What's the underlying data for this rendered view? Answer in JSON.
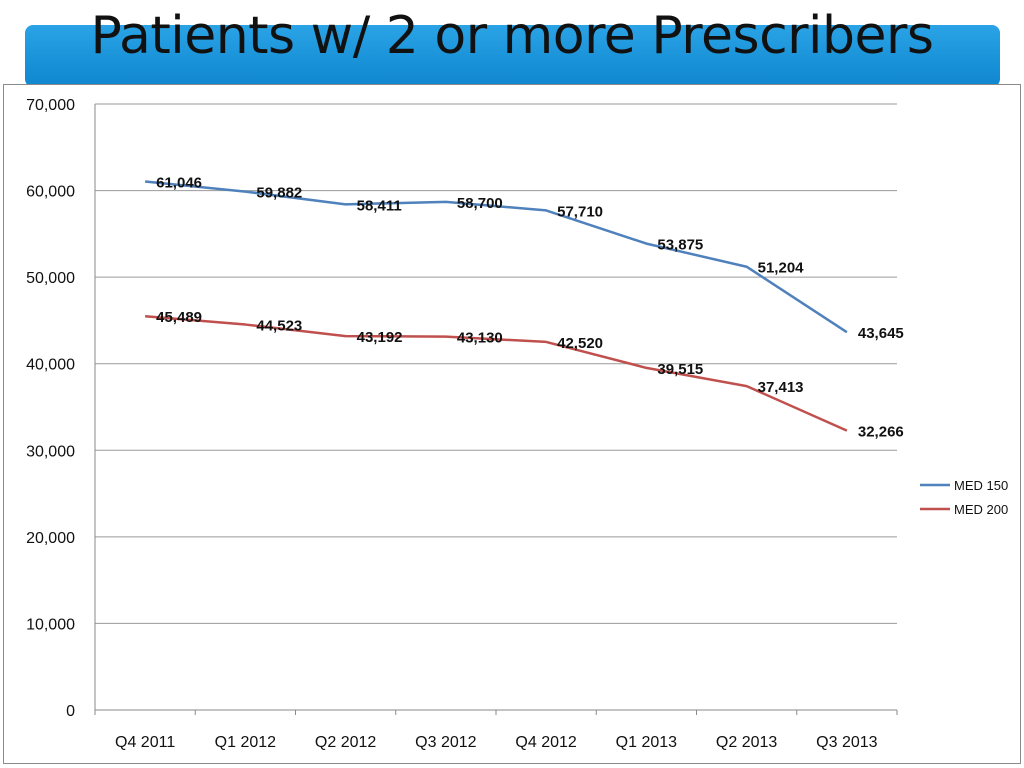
{
  "slide": {
    "title": "Patients w/ 2 or more Prescribers"
  },
  "chart_data": {
    "type": "line",
    "categories": [
      "Q4 2011",
      "Q1 2012",
      "Q2 2012",
      "Q3 2012",
      "Q4 2012",
      "Q1 2013",
      "Q2 2013",
      "Q3 2013"
    ],
    "series": [
      {
        "name": "MED 150",
        "color": "#4f81bd",
        "values": [
          61046,
          59882,
          58411,
          58700,
          57710,
          53875,
          51204,
          43645
        ],
        "labels": [
          "61,046",
          "59,882",
          "58,411",
          "58,700",
          "57,710",
          "53,875",
          "51,204",
          "43,645"
        ]
      },
      {
        "name": "MED 200",
        "color": "#c0504d",
        "values": [
          45489,
          44523,
          43192,
          43130,
          42520,
          39515,
          37413,
          32266
        ],
        "labels": [
          "45,489",
          "44,523",
          "43,192",
          "43,130",
          "42,520",
          "39,515",
          "37,413",
          "32,266"
        ]
      }
    ],
    "ylim": [
      0,
      70000
    ],
    "yticks": [
      0,
      10000,
      20000,
      30000,
      40000,
      50000,
      60000,
      70000
    ],
    "ytick_labels": [
      "0",
      "10,000",
      "20,000",
      "30,000",
      "40,000",
      "50,000",
      "60,000",
      "70,000"
    ],
    "grid": true,
    "legend": "right"
  }
}
